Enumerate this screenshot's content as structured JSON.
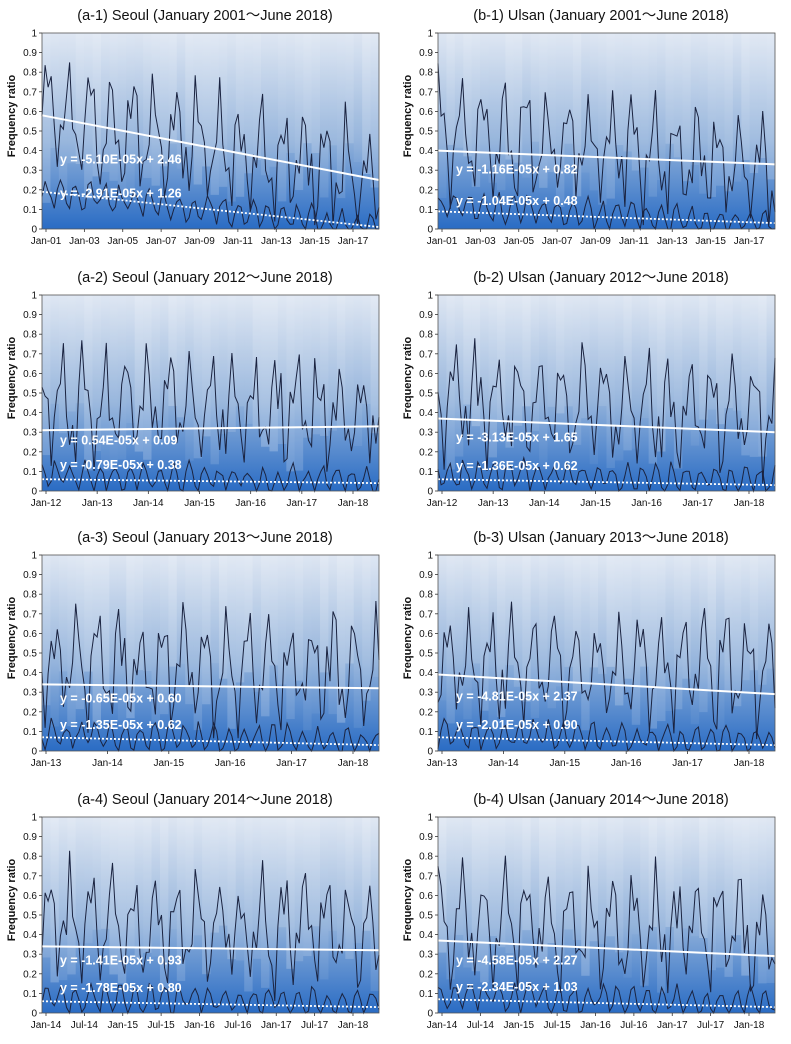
{
  "y_axis_label": "Frequency ratio",
  "colors": {
    "band_dark": "#2a6cc4",
    "band_light": "#c9d6ea",
    "band_top": "#dce5f2",
    "data_line": "#1a2340",
    "trend_line": "#ffffff"
  },
  "chart_data": [
    {
      "type": "area",
      "title": "(a-1) Seoul (January 2001〜June 2018)",
      "ylabel": "Frequency ratio",
      "ylim": [
        0,
        1
      ],
      "yticks": [
        "0",
        "0.1",
        "0.2",
        "0.3",
        "0.4",
        "0.5",
        "0.6",
        "0.7",
        "0.8",
        "0.9",
        "1"
      ],
      "x_range": [
        "Jan-01",
        "Jun-18"
      ],
      "xticks": [
        "Jan-01",
        "Jan-03",
        "Jan-05",
        "Jan-07",
        "Jan-09",
        "Jan-11",
        "Jan-13",
        "Jan-15",
        "Jan-17"
      ],
      "upper_line_start_end": [
        0.58,
        0.25
      ],
      "lower_line_start_end": [
        0.19,
        0.01
      ],
      "series": [
        {
          "name": "y = -5.10E-05x + 2.46",
          "style": "solid",
          "trend_y_start_end": [
            0.58,
            0.25
          ]
        },
        {
          "name": "y = -2.91E-05x + 1.26",
          "style": "dotted",
          "trend_y_start_end": [
            0.19,
            0.01
          ]
        }
      ]
    },
    {
      "type": "area",
      "title": "(b-1) Ulsan (January 2001〜June 2018)",
      "ylabel": "Frequency ratio",
      "ylim": [
        0,
        1
      ],
      "yticks": [
        "0",
        "0.1",
        "0.2",
        "0.3",
        "0.4",
        "0.5",
        "0.6",
        "0.7",
        "0.8",
        "0.9",
        "1"
      ],
      "x_range": [
        "Jan-01",
        "Jun-18"
      ],
      "xticks": [
        "Jan-01",
        "Jan-03",
        "Jan-05",
        "Jan-07",
        "Jan-09",
        "Jan-11",
        "Jan-13",
        "Jan-15",
        "Jan-17"
      ],
      "upper_line_start_end": [
        0.5,
        0.3
      ],
      "lower_line_start_end": [
        0.12,
        0.03
      ],
      "series": [
        {
          "name": "y = -1.16E-05x + 0.82",
          "style": "solid",
          "trend_y_start_end": [
            0.4,
            0.33
          ]
        },
        {
          "name": "y = -1.04E-05x + 0.48",
          "style": "dotted",
          "trend_y_start_end": [
            0.09,
            0.03
          ]
        }
      ]
    },
    {
      "type": "area",
      "title": "(a-2) Seoul (January 2012〜June 2018)",
      "ylabel": "Frequency ratio",
      "ylim": [
        0,
        1
      ],
      "yticks": [
        "0",
        "0.1",
        "0.2",
        "0.3",
        "0.4",
        "0.5",
        "0.6",
        "0.7",
        "0.8",
        "0.9",
        "1"
      ],
      "x_range": [
        "Jan-12",
        "Jun-18"
      ],
      "xticks": [
        "Jan-12",
        "Jan-13",
        "Jan-14",
        "Jan-15",
        "Jan-16",
        "Jan-17",
        "Jan-18"
      ],
      "upper_line_start_end": [
        0.45,
        0.4
      ],
      "lower_line_start_end": [
        0.08,
        0.05
      ],
      "series": [
        {
          "name": "y = 0.54E-05x + 0.09",
          "style": "solid",
          "trend_y_start_end": [
            0.31,
            0.33
          ]
        },
        {
          "name": "y = -0.79E-05x + 0.38",
          "style": "dotted",
          "trend_y_start_end": [
            0.06,
            0.04
          ]
        }
      ]
    },
    {
      "type": "area",
      "title": "(b-2) Ulsan (January 2012〜June 2018)",
      "ylabel": "Frequency ratio",
      "ylim": [
        0,
        1
      ],
      "yticks": [
        "0",
        "0.1",
        "0.2",
        "0.3",
        "0.4",
        "0.5",
        "0.6",
        "0.7",
        "0.8",
        "0.9",
        "1"
      ],
      "x_range": [
        "Jan-12",
        "Jun-18"
      ],
      "xticks": [
        "Jan-12",
        "Jan-13",
        "Jan-14",
        "Jan-15",
        "Jan-16",
        "Jan-17",
        "Jan-18"
      ],
      "upper_line_start_end": [
        0.45,
        0.4
      ],
      "lower_line_start_end": [
        0.09,
        0.05
      ],
      "series": [
        {
          "name": "y = -3.13E-05x + 1.65",
          "style": "solid",
          "trend_y_start_end": [
            0.37,
            0.3
          ]
        },
        {
          "name": "y = -1.36E-05x + 0.62",
          "style": "dotted",
          "trend_y_start_end": [
            0.06,
            0.03
          ]
        }
      ]
    },
    {
      "type": "area",
      "title": "(a-3) Seoul (January 2013〜June 2018)",
      "ylabel": "Frequency ratio",
      "ylim": [
        0,
        1
      ],
      "yticks": [
        "0",
        "0.1",
        "0.2",
        "0.3",
        "0.4",
        "0.5",
        "0.6",
        "0.7",
        "0.8",
        "0.9",
        "1"
      ],
      "x_range": [
        "Jan-13",
        "Jun-18"
      ],
      "xticks": [
        "Jan-13",
        "Jan-14",
        "Jan-15",
        "Jan-16",
        "Jan-17",
        "Jan-18"
      ],
      "upper_line_start_end": [
        0.45,
        0.4
      ],
      "lower_line_start_end": [
        0.08,
        0.05
      ],
      "series": [
        {
          "name": "y = -0.65E-05x + 0.60",
          "style": "solid",
          "trend_y_start_end": [
            0.34,
            0.32
          ]
        },
        {
          "name": "y = -1.35E-05x + 0.62",
          "style": "dotted",
          "trend_y_start_end": [
            0.07,
            0.03
          ]
        }
      ]
    },
    {
      "type": "area",
      "title": "(b-3) Ulsan (January 2013〜June 2018)",
      "ylabel": "Frequency ratio",
      "ylim": [
        0,
        1
      ],
      "yticks": [
        "0",
        "0.1",
        "0.2",
        "0.3",
        "0.4",
        "0.5",
        "0.6",
        "0.7",
        "0.8",
        "0.9",
        "1"
      ],
      "x_range": [
        "Jan-13",
        "Jun-18"
      ],
      "xticks": [
        "Jan-13",
        "Jan-14",
        "Jan-15",
        "Jan-16",
        "Jan-17",
        "Jan-18"
      ],
      "upper_line_start_end": [
        0.45,
        0.4
      ],
      "lower_line_start_end": [
        0.09,
        0.05
      ],
      "series": [
        {
          "name": "y = -4.81E-05x + 2.37",
          "style": "solid",
          "trend_y_start_end": [
            0.39,
            0.29
          ]
        },
        {
          "name": "y = -2.01E-05x + 0.90",
          "style": "dotted",
          "trend_y_start_end": [
            0.07,
            0.03
          ]
        }
      ]
    },
    {
      "type": "area",
      "title": "(a-4) Seoul (January 2014〜June 2018)",
      "ylabel": "Frequency ratio",
      "ylim": [
        0,
        1
      ],
      "yticks": [
        "0",
        "0.1",
        "0.2",
        "0.3",
        "0.4",
        "0.5",
        "0.6",
        "0.7",
        "0.8",
        "0.9",
        "1"
      ],
      "x_range": [
        "Jan-14",
        "Jun-18"
      ],
      "xticks": [
        "Jan-14",
        "Jul-14",
        "Jan-15",
        "Jul-15",
        "Jan-16",
        "Jul-16",
        "Jan-17",
        "Jul-17",
        "Jan-18"
      ],
      "upper_line_start_end": [
        0.45,
        0.4
      ],
      "lower_line_start_end": [
        0.08,
        0.05
      ],
      "series": [
        {
          "name": "y = -1.41E-05x + 0.93",
          "style": "solid",
          "trend_y_start_end": [
            0.34,
            0.32
          ]
        },
        {
          "name": "y = -1.78E-05x + 0.80",
          "style": "dotted",
          "trend_y_start_end": [
            0.06,
            0.03
          ]
        }
      ]
    },
    {
      "type": "area",
      "title": "(b-4) Ulsan (January 2014〜June 2018)",
      "ylabel": "Frequency ratio",
      "ylim": [
        0,
        1
      ],
      "yticks": [
        "0",
        "0.1",
        "0.2",
        "0.3",
        "0.4",
        "0.5",
        "0.6",
        "0.7",
        "0.8",
        "0.9",
        "1"
      ],
      "x_range": [
        "Jan-14",
        "Jun-18"
      ],
      "xticks": [
        "Jan-14",
        "Jul-14",
        "Jan-15",
        "Jul-15",
        "Jan-16",
        "Jul-16",
        "Jan-17",
        "Jul-17",
        "Jan-18"
      ],
      "upper_line_start_end": [
        0.45,
        0.4
      ],
      "lower_line_start_end": [
        0.09,
        0.05
      ],
      "series": [
        {
          "name": "y = -4.58E-05x + 2.27",
          "style": "solid",
          "trend_y_start_end": [
            0.37,
            0.29
          ]
        },
        {
          "name": "y = -2.34E-05x + 1.03",
          "style": "dotted",
          "trend_y_start_end": [
            0.07,
            0.03
          ]
        }
      ]
    }
  ]
}
